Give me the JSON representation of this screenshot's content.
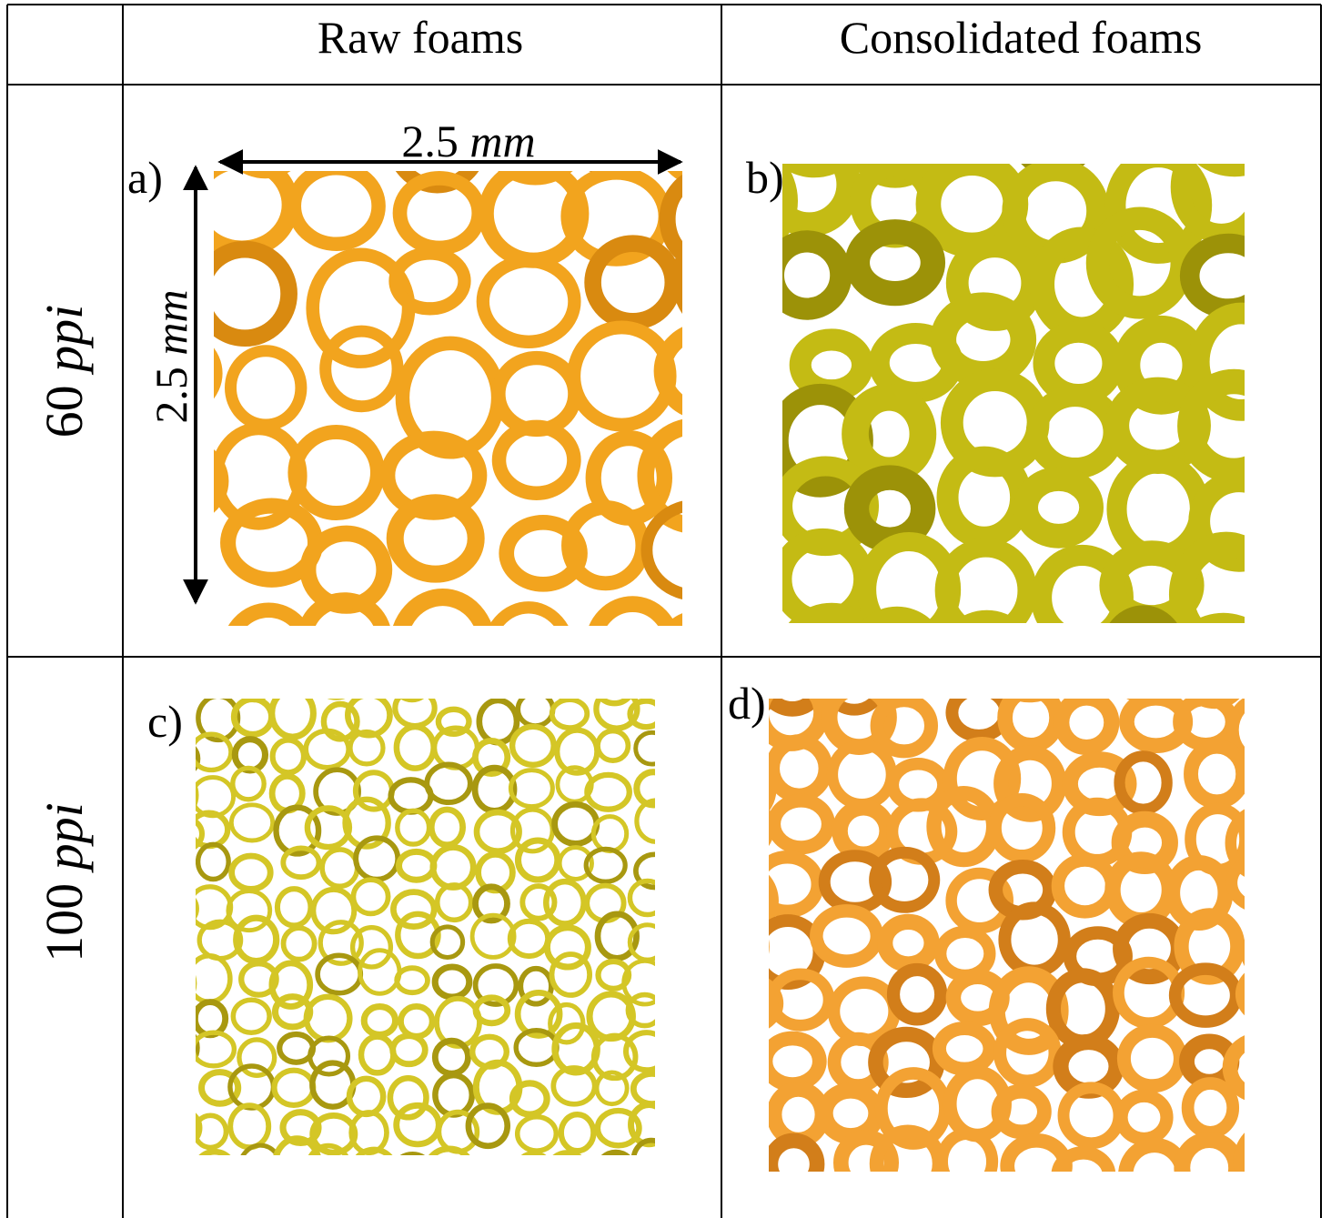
{
  "table": {
    "columns": [
      "Raw foams",
      "Consolidated foams"
    ],
    "rows": [
      {
        "label": {
          "number": "60",
          "unit": "ppi"
        },
        "panels": [
          "a)",
          "b)"
        ]
      },
      {
        "label": {
          "number": "100",
          "unit": "ppi"
        },
        "panels": [
          "c)",
          "d)"
        ]
      }
    ],
    "scale": {
      "horizontal": {
        "number": "2.5",
        "unit": "mm"
      },
      "vertical": {
        "number": "2.5",
        "unit": "mm"
      }
    }
  }
}
